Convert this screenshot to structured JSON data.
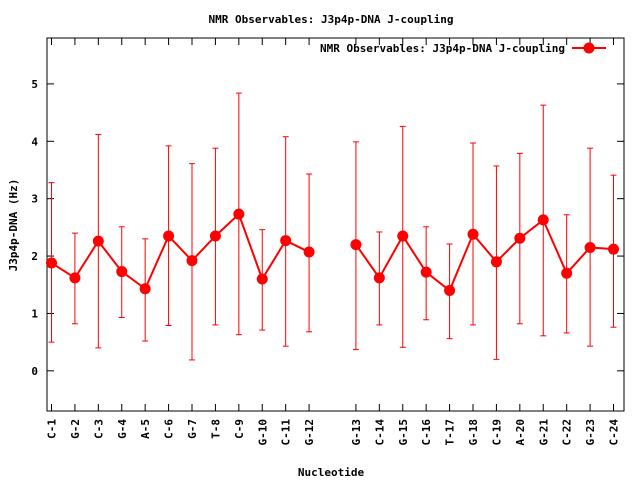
{
  "chart_data": {
    "type": "line",
    "title": "NMR Observables: J3p4p-DNA J-coupling",
    "xlabel": "Nucleotide",
    "ylabel": "J3p4p-DNA (Hz)",
    "ylim": [
      -0.7,
      5.8
    ],
    "yticks": [
      "0",
      "1",
      "2",
      "3",
      "4",
      "5"
    ],
    "grid": false,
    "legend": {
      "label": "NMR Observables: J3p4p-DNA J-coupling",
      "placement": "top-right"
    },
    "series": [
      {
        "name": "NMR Observables: J3p4p-DNA J-coupling",
        "color": "#ff0000",
        "segments": [
          {
            "categories": [
              "C-1",
              "G-2",
              "C-3",
              "G-4",
              "A-5",
              "C-6",
              "G-7",
              "T-8",
              "C-9",
              "G-10",
              "C-11",
              "G-12"
            ],
            "values": [
              1.88,
              1.62,
              2.26,
              1.73,
              1.43,
              2.35,
              1.92,
              2.35,
              2.73,
              1.6,
              2.27,
              2.07
            ],
            "err_low": [
              0.5,
              0.82,
              0.4,
              0.93,
              0.52,
              0.79,
              0.19,
              0.8,
              0.63,
              0.71,
              0.43,
              0.68
            ],
            "err_high": [
              3.28,
              2.4,
              4.12,
              2.51,
              2.3,
              3.92,
              3.61,
              3.88,
              4.84,
              2.46,
              4.08,
              3.43
            ]
          },
          {
            "categories": [
              "G-13",
              "C-14",
              "G-15",
              "C-16",
              "T-17",
              "G-18",
              "C-19",
              "A-20",
              "G-21",
              "C-22",
              "G-23",
              "C-24"
            ],
            "values": [
              2.2,
              1.62,
              2.35,
              1.72,
              1.4,
              2.38,
              1.9,
              2.31,
              2.63,
              1.7,
              2.15,
              2.12
            ],
            "err_low": [
              0.37,
              0.8,
              0.41,
              0.89,
              0.56,
              0.8,
              0.2,
              0.82,
              0.61,
              0.66,
              0.43,
              0.76
            ],
            "err_high": [
              3.99,
              2.42,
              4.26,
              2.51,
              2.21,
              3.97,
              3.57,
              3.79,
              4.63,
              2.72,
              3.88,
              3.41
            ]
          }
        ]
      }
    ]
  }
}
